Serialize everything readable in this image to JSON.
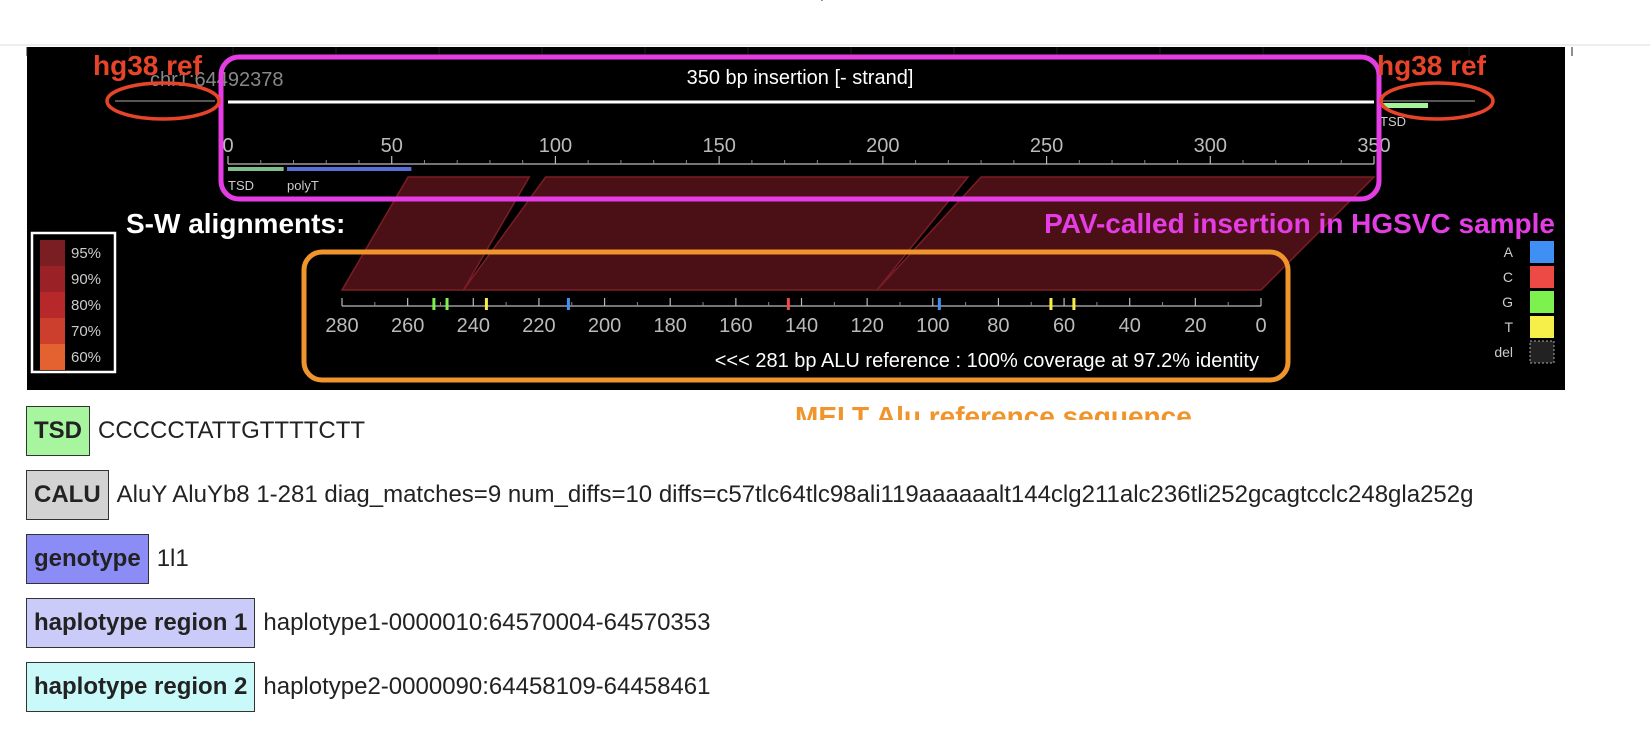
{
  "colors": {
    "panel_bg": "#000000",
    "insertion_box": "#e43de4",
    "alu_box": "#f0952c",
    "hg38_ref": "#e8442a",
    "alignment_fill": "#4b1016",
    "alignment_edge": "#7a1d25",
    "tsd_bar": "#7fbf8c",
    "polyT_bar": "#5570d8",
    "flank_tsd": "#a4f59a"
  },
  "top_right_char": "’",
  "panel": {
    "hg38_left_label": "hg38 ref",
    "hg38_right_label": "hg38 ref",
    "position_label": "chr1:64492378",
    "insertion_title": "350 bp insertion [- strand]",
    "insertion_axis_ticks": [
      "0",
      "50",
      "100",
      "150",
      "200",
      "250",
      "300",
      "350"
    ],
    "feature_tsd": "TSD",
    "feature_polyT": "polyT",
    "flank_tsd_label": "TSD",
    "sw_label": "S-W alignments:",
    "pav_label": "PAV-called insertion in HGSVC sample",
    "ref_axis_ticks": [
      "280",
      "260",
      "240",
      "220",
      "200",
      "180",
      "160",
      "140",
      "120",
      "100",
      "80",
      "60",
      "40",
      "20",
      "0"
    ],
    "ref_caption": "<<< 281 bp ALU reference : 100% coverage at 97.2% identity",
    "melt_label": "MELT Alu reference sequence"
  },
  "identity_legend": [
    {
      "label": "95%",
      "color": "#7a1e24"
    },
    {
      "label": "90%",
      "color": "#9a2126"
    },
    {
      "label": "80%",
      "color": "#b7282a"
    },
    {
      "label": "70%",
      "color": "#cc3f2c"
    },
    {
      "label": "60%",
      "color": "#e3622f"
    }
  ],
  "base_legend": [
    {
      "label": "A",
      "color": "#3f8ff5"
    },
    {
      "label": "C",
      "color": "#ee4a45"
    },
    {
      "label": "G",
      "color": "#7df14e"
    },
    {
      "label": "T",
      "color": "#f6ef4a"
    },
    {
      "label": "del",
      "color": "#222222"
    }
  ],
  "insertion": {
    "length_bp": 350,
    "strand": "-"
  },
  "insertion_features": [
    {
      "name": "TSD",
      "start": 0,
      "end": 17
    },
    {
      "name": "polyT",
      "start": 18,
      "end": 56
    }
  ],
  "alignments": [
    {
      "ins_start": 55,
      "ins_end": 92,
      "ref_start": 280,
      "ref_end": 243
    },
    {
      "ins_start": 97,
      "ins_end": 226,
      "ref_start": 243,
      "ref_end": 117
    },
    {
      "ins_start": 230,
      "ins_end": 350,
      "ref_start": 117,
      "ref_end": 0
    }
  ],
  "snv_marks": [
    {
      "ref_pos": 252,
      "base": "G"
    },
    {
      "ref_pos": 248,
      "base": "G"
    },
    {
      "ref_pos": 236,
      "base": "T"
    },
    {
      "ref_pos": 211,
      "base": "A"
    },
    {
      "ref_pos": 144,
      "base": "C"
    },
    {
      "ref_pos": 98,
      "base": "A"
    },
    {
      "ref_pos": 64,
      "base": "T"
    },
    {
      "ref_pos": 57,
      "base": "T"
    }
  ],
  "info_rows": [
    {
      "label": "TSD",
      "value": "CCCCCTATTGTTTTCTT",
      "color": "#a8f5a0"
    },
    {
      "label": "CALU",
      "value": "AluY AluYb8 1-281 diag_matches=9 num_diffs=10 diffs=c57tlc64tlc98ali119aaaaaalt144clg211alc236tli252gcagtcclc248gla252g",
      "color": "#d3d3d3"
    },
    {
      "label": "genotype",
      "value": "1l1",
      "color": "#8c8cf7"
    },
    {
      "label": "haplotype region 1",
      "value": "haplotype1-0000010:64570004-64570353",
      "color": "#cbcbf9"
    },
    {
      "label": "haplotype region 2",
      "value": "haplotype2-0000090:64458109-64458461",
      "color": "#c9f9f9"
    }
  ]
}
